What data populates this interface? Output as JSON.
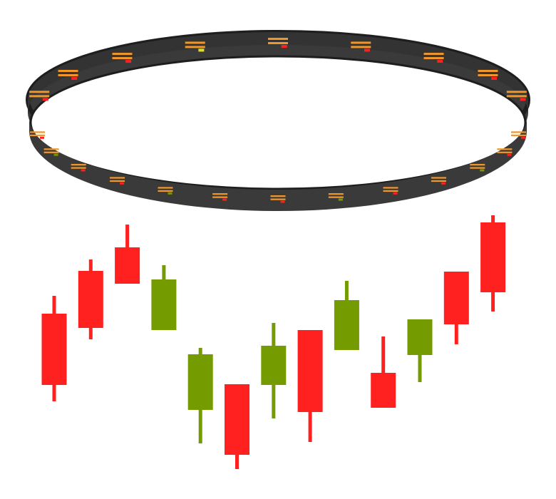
{
  "chart_data": {
    "type": "candlestick",
    "title": "",
    "xlabel": "",
    "ylabel": "",
    "decorative_ring": "ring-icon",
    "colors": {
      "up": "#749b00",
      "down": "#ff2020",
      "ring": "#3a3a3a",
      "ring_dark": "#1e1e1e",
      "ring_marks": "#f0962a",
      "background": "#ffffff"
    },
    "candles": [
      {
        "open": 260,
        "close": 160,
        "high": 285,
        "low": 137,
        "direction": "down"
      },
      {
        "open": 320,
        "close": 240,
        "high": 336,
        "low": 224,
        "direction": "down"
      },
      {
        "open": 353,
        "close": 302,
        "high": 385,
        "low": 302,
        "direction": "down"
      },
      {
        "open": 237,
        "close": 308,
        "high": 328,
        "low": 237,
        "direction": "up"
      },
      {
        "open": 125,
        "close": 203,
        "high": 212,
        "low": 78,
        "direction": "up"
      },
      {
        "open": 161,
        "close": 62,
        "high": 161,
        "low": 42,
        "direction": "down"
      },
      {
        "open": 160,
        "close": 215,
        "high": 247,
        "low": 113,
        "direction": "up"
      },
      {
        "open": 237,
        "close": 122,
        "high": 237,
        "low": 80,
        "direction": "down"
      },
      {
        "open": 209,
        "close": 279,
        "high": 306,
        "low": 209,
        "direction": "up"
      },
      {
        "open": 177,
        "close": 128,
        "high": 228,
        "low": 128,
        "direction": "down"
      },
      {
        "open": 202,
        "close": 252,
        "high": 252,
        "low": 164,
        "direction": "up"
      },
      {
        "open": 319,
        "close": 245,
        "high": 319,
        "low": 217,
        "direction": "down"
      },
      {
        "open": 388,
        "close": 290,
        "high": 398,
        "low": 263,
        "direction": "down"
      }
    ],
    "ylim": [
      40,
      400
    ],
    "grid": false,
    "legend": "none"
  }
}
